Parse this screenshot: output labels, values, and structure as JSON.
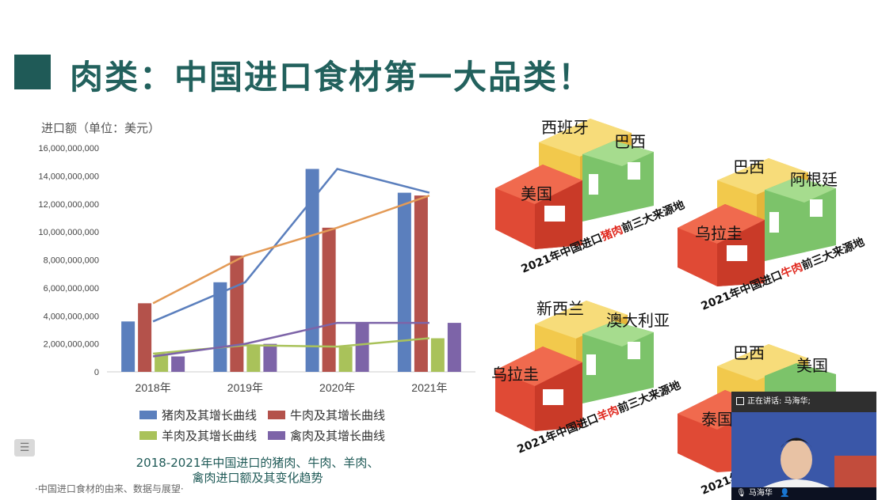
{
  "slide": {
    "title": "肉类：中国进口食材第一大品类！",
    "unit_label": "进口额（单位：美元）",
    "caption_line1": "2018-2021年中国进口的猪肉、牛肉、羊肉、",
    "caption_line2": "禽肉进口额及其变化趋势",
    "footer": "·中国进口食材的由来、数据与展望·",
    "menu_icon": "list-icon"
  },
  "chart_data": {
    "type": "bar",
    "categories": [
      "2018年",
      "2019年",
      "2020年",
      "2021年"
    ],
    "yticks": [
      "0",
      "2,000,000,000",
      "4,000,000,000",
      "6,000,000,000",
      "8,000,000,000",
      "10,000,000,000",
      "12,000,000,000",
      "14,000,000,000",
      "16,000,000,000"
    ],
    "ylim": [
      0,
      16000000000
    ],
    "series": [
      {
        "name": "猪肉及其增长曲线",
        "color": "#5b7fbd",
        "values": [
          3600000000,
          6400000000,
          14500000000,
          12800000000
        ]
      },
      {
        "name": "牛肉及其增长曲线",
        "color": "#b4524b",
        "values": [
          4900000000,
          8300000000,
          10300000000,
          12600000000
        ]
      },
      {
        "name": "羊肉及其增长曲线",
        "color": "#a9c25a",
        "values": [
          1300000000,
          1900000000,
          1800000000,
          2400000000
        ]
      },
      {
        "name": "禽肉及其增长曲线",
        "color": "#7d64a8",
        "values": [
          1100000000,
          2000000000,
          3500000000,
          3500000000
        ]
      }
    ],
    "trend_lines": [
      {
        "name": "猪肉",
        "color": "#5b7fbd",
        "values": [
          3600000000,
          6400000000,
          14500000000,
          12800000000
        ]
      },
      {
        "name": "牛肉",
        "color": "#e39a56",
        "values": [
          4900000000,
          8300000000,
          10300000000,
          12600000000
        ]
      },
      {
        "name": "羊肉",
        "color": "#a9c25a",
        "values": [
          1300000000,
          1900000000,
          1800000000,
          2400000000
        ]
      },
      {
        "name": "禽肉",
        "color": "#7d64a8",
        "values": [
          1100000000,
          2000000000,
          3500000000,
          3500000000
        ]
      }
    ]
  },
  "podiums": [
    {
      "first": "美国",
      "second": "西班牙",
      "third": "巴西",
      "caption_pre": "2021年中国进口",
      "caption_meat": "猪肉",
      "caption_post": "前三大来源地"
    },
    {
      "first": "乌拉圭",
      "second": "巴西",
      "third": "阿根廷",
      "caption_pre": "2021年中国进口",
      "caption_meat": "牛肉",
      "caption_post": "前三大来源地"
    },
    {
      "first": "乌拉圭",
      "second": "新西兰",
      "third": "澳大利亚",
      "caption_pre": "2021年中国进口",
      "caption_meat": "羊肉",
      "caption_post": "前三大来源地"
    },
    {
      "first": "泰国",
      "second": "巴西",
      "third": "美国",
      "caption_pre": "2021年",
      "caption_meat": "",
      "caption_post": ""
    }
  ],
  "video": {
    "speaking_label": "正在讲话: 马海华;",
    "participant_name": "马海华",
    "mic_icon": "mic-icon",
    "person_icon": "person-icon"
  },
  "colors": {
    "title": "#22615d",
    "accent_block": "#1f5a57",
    "red": "#e04a35",
    "yellow": "#f2c94c",
    "green": "#7cc36a"
  }
}
